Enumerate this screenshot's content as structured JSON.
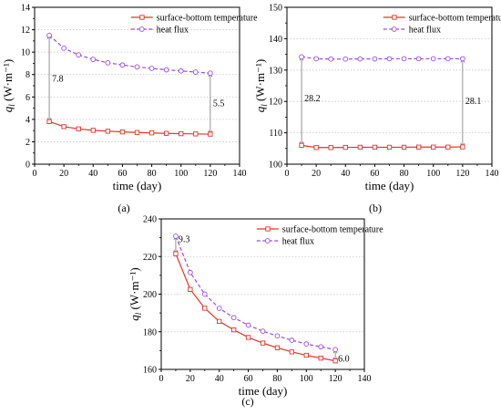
{
  "colors": {
    "temperature": "#e8332a",
    "flux": "#9a4be0",
    "axis": "#000000",
    "grid": "#c8c8c8"
  },
  "chart_data": [
    {
      "type": "line",
      "panel_label": "(a)",
      "xlabel": "time (day)",
      "ylabel_symbol": "q",
      "ylabel_sub": "l",
      "ylabel_unit": "(W·m⁻¹)",
      "xlim": [
        0,
        140
      ],
      "ylim": [
        0,
        14
      ],
      "xticks": [
        0,
        20,
        40,
        60,
        80,
        100,
        120,
        140
      ],
      "yticks": [
        0,
        2,
        4,
        6,
        8,
        10,
        12,
        14
      ],
      "x": [
        10,
        20,
        30,
        40,
        50,
        60,
        70,
        80,
        90,
        100,
        110,
        120
      ],
      "series": [
        {
          "name": "surface-bottom temperature",
          "marker": "square",
          "dash": "solid",
          "values": [
            3.8,
            3.35,
            3.15,
            3.02,
            2.94,
            2.88,
            2.83,
            2.79,
            2.75,
            2.72,
            2.7,
            2.68
          ]
        },
        {
          "name": "heat flux",
          "marker": "circle",
          "dash": "dashed",
          "values": [
            11.5,
            10.35,
            9.75,
            9.35,
            9.05,
            8.85,
            8.68,
            8.55,
            8.42,
            8.32,
            8.22,
            8.12
          ]
        }
      ],
      "annotations": [
        {
          "x": 10,
          "y_from": 3.8,
          "y_to": 11.5,
          "text": "7.8",
          "label_y": 7.6,
          "side": "right"
        },
        {
          "x": 120,
          "y_from": 2.68,
          "y_to": 8.12,
          "text": "5.5",
          "label_y": 5.4,
          "side": "right"
        }
      ],
      "legend": "top-right",
      "grid": true
    },
    {
      "type": "line",
      "panel_label": "(b)",
      "xlabel": "time (day)",
      "ylabel_symbol": "q",
      "ylabel_sub": "l",
      "ylabel_unit": "(W·m⁻¹)",
      "xlim": [
        0,
        140
      ],
      "ylim": [
        100,
        150
      ],
      "xticks": [
        0,
        20,
        40,
        60,
        80,
        100,
        120,
        140
      ],
      "yticks": [
        100,
        110,
        120,
        130,
        140,
        150
      ],
      "x": [
        10,
        20,
        30,
        40,
        50,
        60,
        70,
        80,
        90,
        100,
        110,
        120
      ],
      "series": [
        {
          "name": "surface-bottom temperature",
          "marker": "square",
          "dash": "solid",
          "values": [
            106.0,
            105.3,
            105.3,
            105.35,
            105.4,
            105.4,
            105.4,
            105.4,
            105.45,
            105.45,
            105.45,
            105.5
          ]
        },
        {
          "name": "heat flux",
          "marker": "circle",
          "dash": "dashed",
          "values": [
            134.2,
            133.6,
            133.5,
            133.5,
            133.55,
            133.55,
            133.6,
            133.6,
            133.6,
            133.6,
            133.6,
            133.6
          ]
        }
      ],
      "annotations": [
        {
          "x": 10,
          "y_from": 106.0,
          "y_to": 134.2,
          "text": "28.2",
          "label_y": 121,
          "side": "right"
        },
        {
          "x": 120,
          "y_from": 105.5,
          "y_to": 133.6,
          "text": "28.1",
          "label_y": 120,
          "side": "right"
        }
      ],
      "legend": "top-right",
      "grid": true
    },
    {
      "type": "line",
      "panel_label": "(c)",
      "xlabel": "time (day)",
      "ylabel_symbol": "q",
      "ylabel_sub": "l",
      "ylabel_unit": "(W·m⁻¹)",
      "xlim": [
        0,
        140
      ],
      "ylim": [
        160,
        240
      ],
      "xticks": [
        0,
        20,
        40,
        60,
        80,
        100,
        120,
        140
      ],
      "yticks": [
        160,
        180,
        200,
        220,
        240
      ],
      "x": [
        10,
        20,
        30,
        40,
        50,
        60,
        70,
        80,
        90,
        100,
        110,
        120
      ],
      "series": [
        {
          "name": "surface-bottom temperature",
          "marker": "square",
          "dash": "solid",
          "values": [
            221.5,
            202.5,
            192.5,
            185.5,
            181.0,
            177.0,
            174.0,
            171.5,
            169.3,
            167.5,
            166.0,
            164.5
          ]
        },
        {
          "name": "heat flux",
          "marker": "circle",
          "dash": "dashed",
          "values": [
            230.8,
            211.5,
            200.0,
            192.5,
            187.5,
            183.5,
            180.3,
            177.8,
            175.5,
            173.5,
            172.0,
            170.5
          ]
        }
      ],
      "annotations": [
        {
          "x": 10,
          "y_from": 221.5,
          "y_to": 230.8,
          "text": "9.3",
          "label_y": 229,
          "side": "right"
        },
        {
          "x": 120,
          "y_from": 164.5,
          "y_to": 170.5,
          "text": "6.0",
          "label_y": 165.5,
          "side": "right"
        }
      ],
      "legend": "top-right",
      "grid": true
    }
  ]
}
